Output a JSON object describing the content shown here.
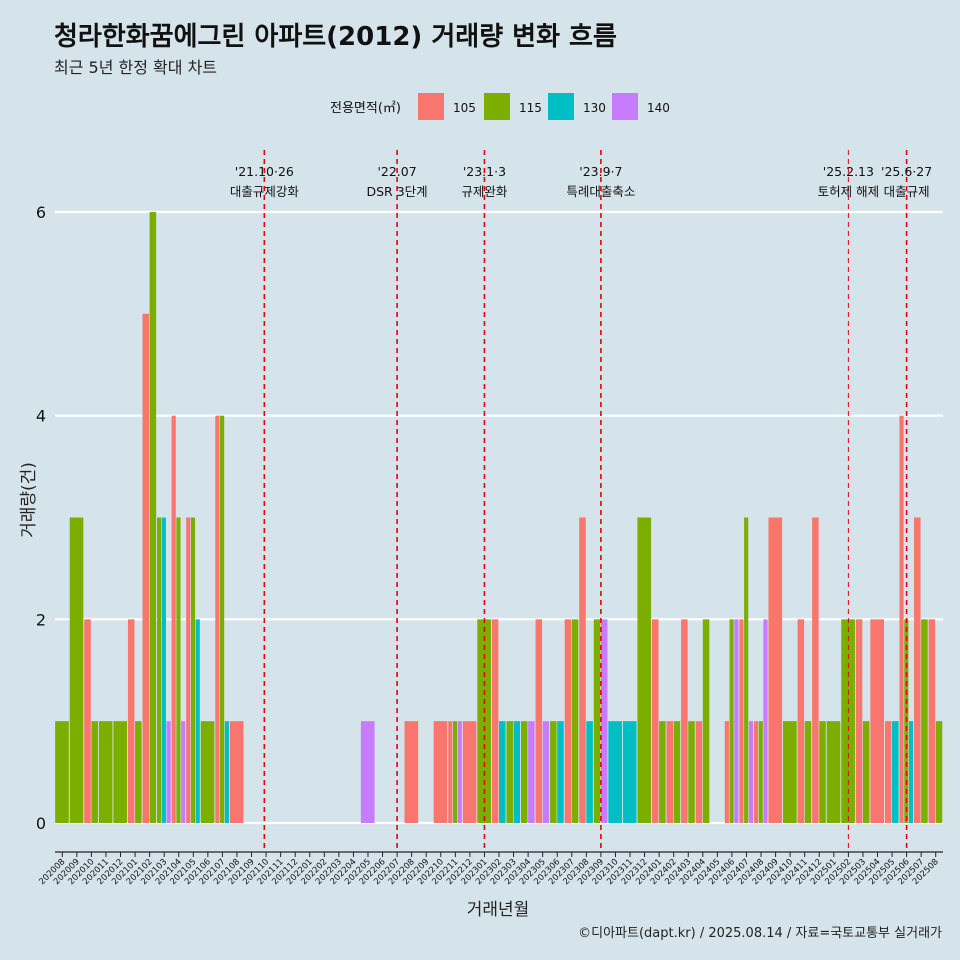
{
  "header": {
    "title": "청라한화꿈에그린 아파트(2012) 거래량 변화 흐름",
    "subtitle": "최근 5년 한정 확대 차트"
  },
  "footer": {
    "caption": "©디아파트(dapt.kr) / 2025.08.14 / 자료=국토교통부 실거래가"
  },
  "chart_data": {
    "type": "bar",
    "xlabel": "거래년월",
    "ylabel": "거래량(건)",
    "ylim": [
      0,
      6
    ],
    "yticks": [
      0,
      2,
      4,
      6
    ],
    "grid": true,
    "legend": {
      "title": "전용면적(㎡)",
      "placement": "top",
      "entries": [
        {
          "name": "105",
          "color": "#F8766D"
        },
        {
          "name": "115",
          "color": "#7CAE00"
        },
        {
          "name": "130",
          "color": "#00BFC4"
        },
        {
          "name": "140",
          "color": "#C77CFF"
        }
      ]
    },
    "categories": [
      "202008",
      "202009",
      "202010",
      "202011",
      "202012",
      "202101",
      "202102",
      "202103",
      "202104",
      "202105",
      "202106",
      "202107",
      "202108",
      "202109",
      "202110",
      "202111",
      "202112",
      "202201",
      "202202",
      "202203",
      "202204",
      "202205",
      "202206",
      "202207",
      "202208",
      "202209",
      "202210",
      "202211",
      "202212",
      "202301",
      "202302",
      "202303",
      "202304",
      "202305",
      "202306",
      "202307",
      "202308",
      "202309",
      "202310",
      "202311",
      "202312",
      "202401",
      "202402",
      "202403",
      "202404",
      "202405",
      "202406",
      "202407",
      "202408",
      "202409",
      "202410",
      "202411",
      "202412",
      "202501",
      "202502",
      "202503",
      "202504",
      "202505",
      "202506",
      "202507",
      "202508"
    ],
    "series": [
      {
        "name": "105",
        "color": "#F8766D",
        "values": [
          0,
          0,
          2,
          0,
          0,
          2,
          5,
          0,
          4,
          3,
          0,
          4,
          1,
          0,
          0,
          0,
          0,
          0,
          0,
          0,
          0,
          0,
          0,
          0,
          1,
          0,
          1,
          1,
          1,
          0,
          2,
          0,
          0,
          2,
          0,
          2,
          3,
          0,
          0,
          0,
          0,
          2,
          1,
          2,
          1,
          0,
          1,
          2,
          1,
          3,
          0,
          2,
          3,
          0,
          0,
          2,
          2,
          1,
          4,
          3,
          2
        ]
      },
      {
        "name": "115",
        "color": "#7CAE00",
        "values": [
          1,
          3,
          1,
          1,
          1,
          1,
          6,
          3,
          3,
          3,
          1,
          4,
          0,
          0,
          0,
          0,
          0,
          0,
          0,
          0,
          0,
          0,
          0,
          0,
          0,
          0,
          0,
          1,
          0,
          2,
          0,
          1,
          1,
          0,
          1,
          2,
          0,
          2,
          0,
          0,
          3,
          1,
          1,
          1,
          2,
          0,
          2,
          3,
          1,
          0,
          1,
          1,
          1,
          1,
          2,
          1,
          0,
          0,
          2,
          2,
          1
        ]
      },
      {
        "name": "130",
        "color": "#00BFC4",
        "values": [
          0,
          0,
          0,
          0,
          0,
          0,
          0,
          3,
          0,
          2,
          0,
          1,
          0,
          0,
          0,
          0,
          0,
          0,
          0,
          0,
          0,
          0,
          0,
          0,
          0,
          0,
          0,
          0,
          0,
          0,
          1,
          1,
          0,
          0,
          1,
          0,
          1,
          0,
          1,
          1,
          0,
          0,
          0,
          0,
          0,
          0,
          0,
          0,
          0,
          0,
          0,
          0,
          0,
          0,
          0,
          0,
          0,
          1,
          1,
          0,
          0
        ]
      },
      {
        "name": "140",
        "color": "#C77CFF",
        "values": [
          0,
          0,
          0,
          0,
          0,
          0,
          0,
          1,
          1,
          0,
          0,
          0,
          0,
          0,
          0,
          0,
          0,
          0,
          0,
          0,
          0,
          1,
          0,
          0,
          0,
          0,
          0,
          1,
          0,
          0,
          0,
          0,
          1,
          1,
          0,
          0,
          0,
          2,
          0,
          0,
          0,
          0,
          0,
          0,
          0,
          0,
          2,
          1,
          2,
          0,
          0,
          0,
          0,
          0,
          0,
          0,
          0,
          0,
          0,
          0,
          0
        ]
      }
    ],
    "events": [
      {
        "label": "'21.10·26",
        "sublabel": "대출규제강화",
        "x": 14.38
      },
      {
        "label": "'22.07",
        "sublabel": "DSR 3단계",
        "x": 23.5
      },
      {
        "label": "'23.1·3",
        "sublabel": "규제완화",
        "x": 29.5
      },
      {
        "label": "'23.9·7",
        "sublabel": "특례대출축소",
        "x": 37.5
      },
      {
        "label": "'25.2.13",
        "sublabel": "토허제 해제",
        "x": 54.5
      },
      {
        "label": "'25.6·27",
        "sublabel": "대출규제",
        "x": 58.5
      }
    ]
  }
}
